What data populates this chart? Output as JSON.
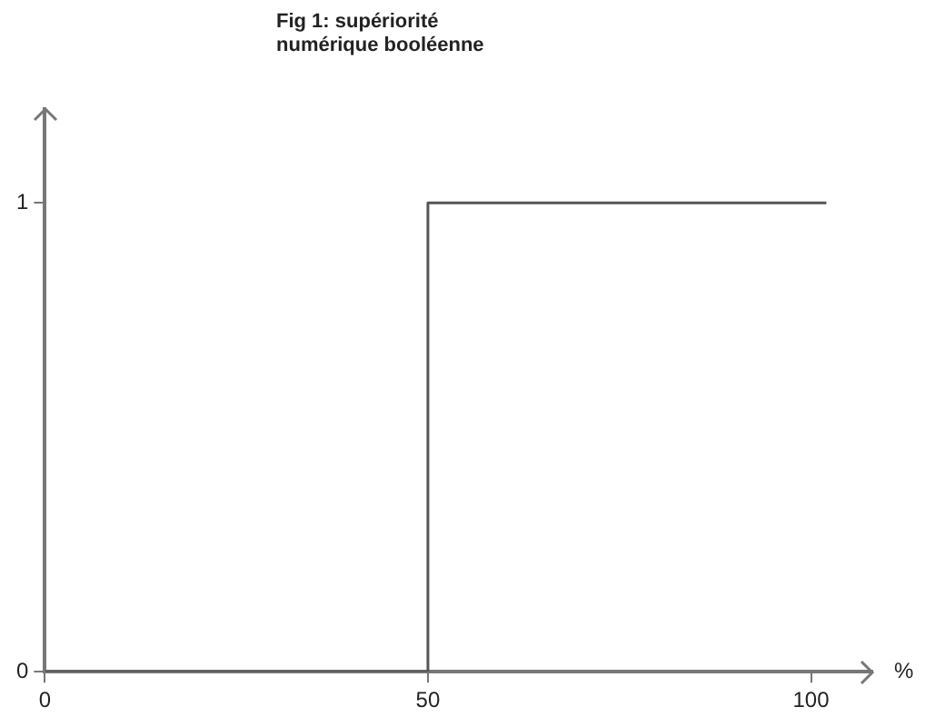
{
  "chart_data": {
    "type": "step",
    "title": "Fig 1: supériorité numérique booléenne",
    "xlabel": "%",
    "x": [
      0,
      50,
      102
    ],
    "series": [
      {
        "color": "#555555",
        "values": [
          0,
          1,
          1
        ]
      }
    ],
    "xlim": [
      0,
      108
    ],
    "xticks": [
      0,
      50,
      100
    ],
    "ylim": [
      0,
      1.2
    ],
    "yticks": [
      0,
      1
    ],
    "grid": false,
    "legend": false,
    "marker": "none",
    "line_style": "solid"
  }
}
